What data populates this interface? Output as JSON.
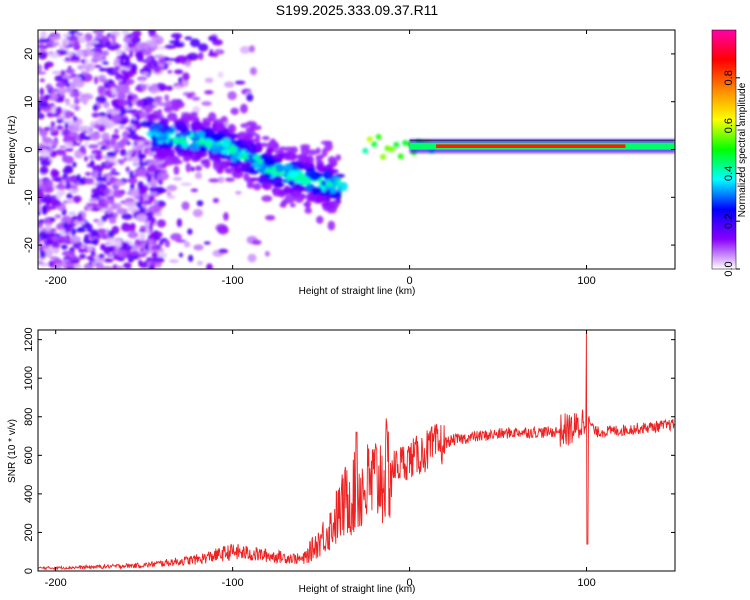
{
  "title": "S199.2025.333.09.37.R11",
  "chart_data": [
    {
      "type": "heatmap",
      "name": "spectrogram",
      "xlabel": "Height of straight line (km)",
      "ylabel": "Frequency (Hz)",
      "xlim": [
        -210,
        150
      ],
      "ylim": [
        -25,
        25
      ],
      "xticks": [
        -200,
        -100,
        0,
        100
      ],
      "xtick_labels": [
        "-200",
        "-100",
        "0",
        "100"
      ],
      "yticks": [
        -20,
        -10,
        0,
        10,
        20
      ],
      "ytick_labels": [
        "-20",
        "-10",
        "0",
        "10",
        "20"
      ],
      "colorbar": {
        "label": "Normalized spectral amplitude",
        "range": [
          0,
          1
        ],
        "ticks": [
          0,
          0.2,
          0.4,
          0.6,
          0.8
        ],
        "tick_labels": [
          "0.0",
          "0.2",
          "0.4",
          "0.6",
          "0.8"
        ],
        "colormap": [
          "#ffffff",
          "#8800ff",
          "#0000ff",
          "#00ffff",
          "#00ff00",
          "#ffff00",
          "#ff8800",
          "#ff0000",
          "#ff00aa"
        ]
      },
      "features": [
        {
          "kind": "noise",
          "x_range": [
            -210,
            -140
          ],
          "y_range": [
            -25,
            25
          ],
          "amplitude": 0.15
        },
        {
          "kind": "band",
          "x": [
            -145,
            -120,
            -100,
            -80,
            -60,
            -40
          ],
          "y": [
            3,
            2,
            0,
            -4,
            -6,
            -8
          ],
          "amplitude": 0.35
        },
        {
          "kind": "line",
          "x_range": [
            0,
            150
          ],
          "y": 0.7,
          "amplitude": 0.85
        }
      ]
    },
    {
      "type": "line",
      "name": "snr",
      "xlabel": "Height of straight line (km)",
      "ylabel": "SNR (10 * v/v)",
      "xlim": [
        -210,
        150
      ],
      "ylim": [
        0,
        1250
      ],
      "xticks": [
        -200,
        -100,
        0,
        100
      ],
      "xtick_labels": [
        "-200",
        "-100",
        "0",
        "100"
      ],
      "yticks": [
        0,
        200,
        400,
        600,
        800,
        1000,
        1200
      ],
      "ytick_labels": [
        "0",
        "200",
        "400",
        "600",
        "800",
        "1000",
        "1200"
      ],
      "color": "#ee2222",
      "envelope": {
        "x": [
          -210,
          -180,
          -150,
          -120,
          -100,
          -80,
          -60,
          -45,
          -35,
          -25,
          -15,
          -5,
          5,
          15,
          25,
          40,
          60,
          80,
          95,
          100,
          105,
          120,
          150
        ],
        "y": [
          15,
          20,
          30,
          60,
          100,
          80,
          60,
          220,
          380,
          430,
          500,
          560,
          600,
          650,
          680,
          700,
          720,
          720,
          740,
          800,
          720,
          730,
          760
        ]
      },
      "spikes": [
        {
          "x": -30,
          "y": 720
        },
        {
          "x": 100,
          "y": 1240
        },
        {
          "x": 100.5,
          "y": 140
        }
      ]
    }
  ]
}
